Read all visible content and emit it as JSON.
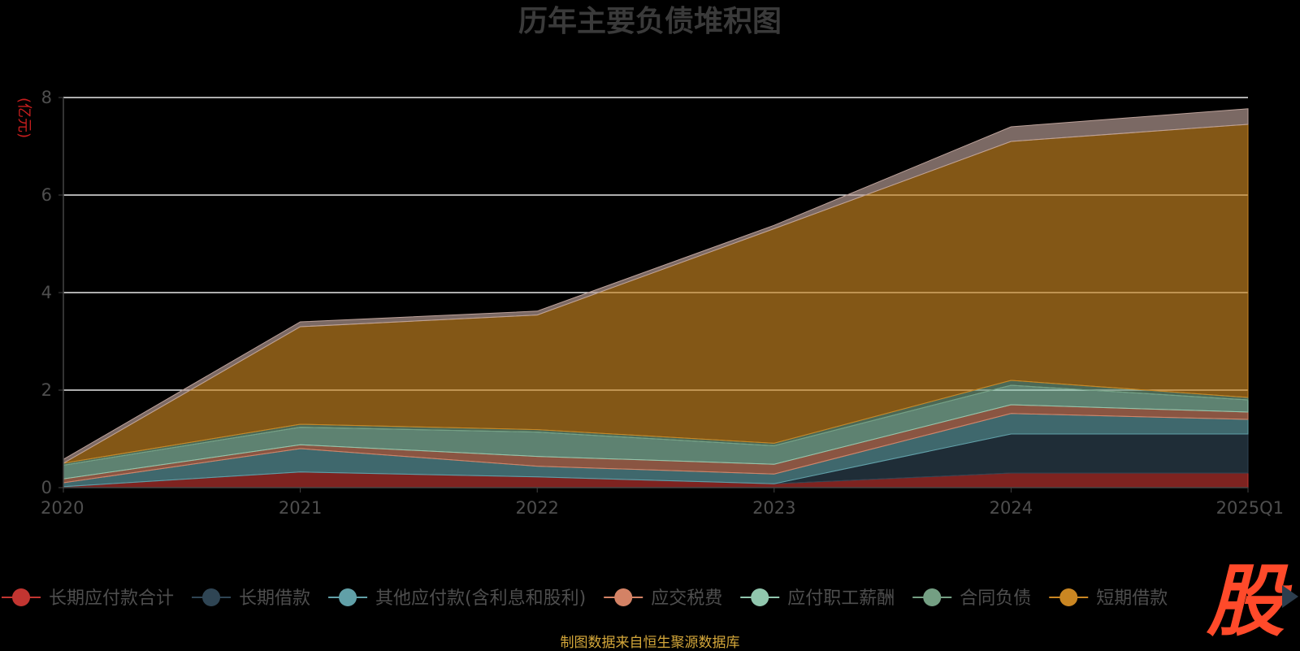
{
  "chart_data": {
    "type": "area",
    "stacked": true,
    "title": "历年主要负债堆积图",
    "ylabel": "亿元",
    "ylim": [
      0,
      8
    ],
    "yticks": [
      0,
      2,
      4,
      6,
      8
    ],
    "grid": true,
    "legend_position": "bottom",
    "categories": [
      "2020",
      "2021",
      "2022",
      "2023",
      "2024",
      "2025Q1"
    ],
    "series": [
      {
        "name": "长期应付款合计",
        "color": "#c23531",
        "values": [
          0.02,
          0.32,
          0.22,
          0.08,
          0.3,
          0.3
        ]
      },
      {
        "name": "长期借款",
        "color": "#2f4554",
        "values": [
          0.0,
          0.0,
          0.0,
          0.0,
          0.8,
          0.8
        ]
      },
      {
        "name": "其他应付款(含利息和股利)",
        "color": "#61a0a8",
        "values": [
          0.08,
          0.48,
          0.22,
          0.2,
          0.42,
          0.3
        ]
      },
      {
        "name": "应交税费",
        "color": "#d48265",
        "values": [
          0.08,
          0.08,
          0.2,
          0.2,
          0.18,
          0.15
        ]
      },
      {
        "name": "应付职工薪酬",
        "color": "#91c7ae",
        "values": [
          0.28,
          0.36,
          0.5,
          0.38,
          0.4,
          0.25
        ]
      },
      {
        "name": "合同负债",
        "color": "#749f83",
        "values": [
          0.04,
          0.06,
          0.05,
          0.05,
          0.1,
          0.05
        ]
      },
      {
        "name": "短期借款",
        "color": "#ca8622",
        "values": [
          0.0,
          2.0,
          2.35,
          4.4,
          4.9,
          5.6
        ]
      },
      {
        "name": "",
        "color": "#bda29a",
        "values": [
          0.08,
          0.1,
          0.08,
          0.07,
          0.3,
          0.32
        ]
      }
    ]
  },
  "legend": {
    "items": [
      {
        "label": "长期应付款合计",
        "color": "#c23531"
      },
      {
        "label": "长期借款",
        "color": "#2f4554"
      },
      {
        "label": "其他应付款(含利息和股利)",
        "color": "#61a0a8"
      },
      {
        "label": "应交税费",
        "color": "#d48265"
      },
      {
        "label": "应付职工薪酬",
        "color": "#91c7ae"
      },
      {
        "label": "合同负债",
        "color": "#749f83"
      },
      {
        "label": "短期借款",
        "color": "#ca8622"
      }
    ]
  },
  "footer": {
    "source": "制图数据来自恒生聚源数据库"
  },
  "logo": {
    "text": "股"
  }
}
